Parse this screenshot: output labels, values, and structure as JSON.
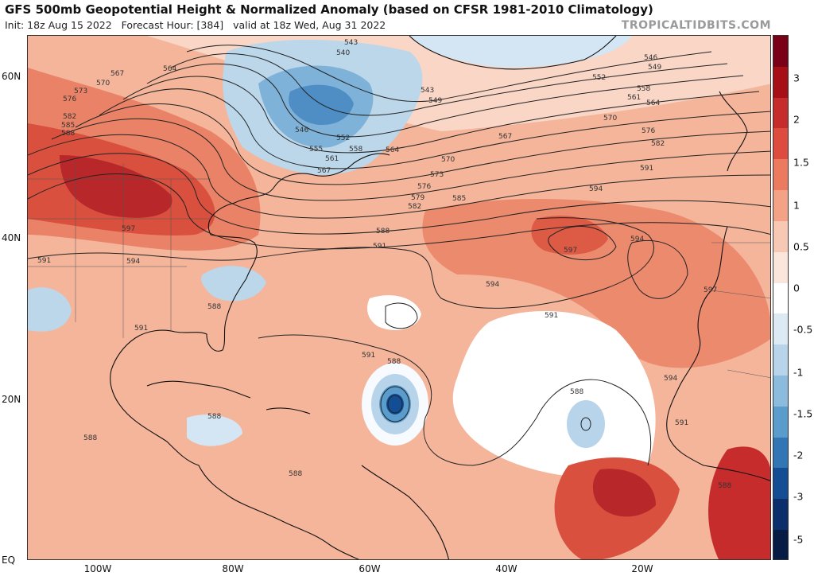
{
  "header": {
    "title": "GFS 500mb Geopotential Height & Normalized Anomaly (based on CFSR 1981-2010 Climatology)",
    "init": "Init: 18z Aug 15 2022",
    "forecast_hour": "Forecast Hour: [384]",
    "valid": "valid at 18z Wed, Aug 31 2022",
    "brand": "TROPICALTIDBITS.COM"
  },
  "axes": {
    "lat_labels": [
      "60N",
      "40N",
      "20N",
      "EQ"
    ],
    "lon_labels": [
      "100W",
      "80W",
      "60W",
      "40W",
      "20W"
    ]
  },
  "colorbar": {
    "ticks": [
      "3",
      "2",
      "1.5",
      "1",
      "0.5",
      "0",
      "-0.5",
      "-1",
      "-1.5",
      "-2",
      "-3",
      "-5"
    ],
    "colors": [
      "#7a0018",
      "#a50f15",
      "#c62c2c",
      "#dd4c3e",
      "#ec7a5f",
      "#f4a285",
      "#f7c8b4",
      "#fbe6dc",
      "#ffffff",
      "#dceaf4",
      "#b7d4ea",
      "#8bbcdd",
      "#5a9ccc",
      "#3276b5",
      "#134e95",
      "#0a2f6b",
      "#061c44"
    ]
  },
  "contour_labels": [
    "543",
    "540",
    "546",
    "549",
    "552",
    "558",
    "561",
    "564",
    "567",
    "570",
    "573",
    "576",
    "579",
    "582",
    "585",
    "588",
    "591",
    "594",
    "597"
  ],
  "map_labels": {
    "l564a": "564",
    "l567a": "567",
    "l570a": "570",
    "l573a": "573",
    "l576a": "576",
    "l582a": "582",
    "l585a": "585",
    "l588a": "588",
    "l543a": "543",
    "l540a": "540",
    "l546a": "546",
    "l549a": "549",
    "l552a": "552",
    "l558a": "558",
    "l561a": "561",
    "l564b": "564",
    "l570b": "570",
    "l576b": "576",
    "l582b": "582",
    "l591a": "591",
    "l594a": "594",
    "l543b": "543",
    "l549b": "549",
    "l546c": "546",
    "l552c": "552",
    "l555": "555",
    "l558c": "558",
    "l561c": "561",
    "l567c": "567",
    "l564c": "564",
    "l570c": "570",
    "l573c": "573",
    "l576c": "576",
    "l579": "579",
    "l582c": "582",
    "l585c": "585",
    "l567d": "567",
    "l588b": "588",
    "l591b": "591",
    "l594b": "594",
    "l597a": "597",
    "l594c": "594",
    "l597b": "597",
    "l594d": "594",
    "l597c": "597",
    "l591c": "591",
    "l594e": "594",
    "l597d": "597",
    "l588c": "588",
    "l591d": "591",
    "l591e": "591",
    "l588d": "588",
    "l588e": "588",
    "l588f": "588",
    "l588g": "588",
    "l588h": "588",
    "l591f": "591",
    "l594f": "594",
    "l588i": "588",
    "l591g": "591"
  }
}
